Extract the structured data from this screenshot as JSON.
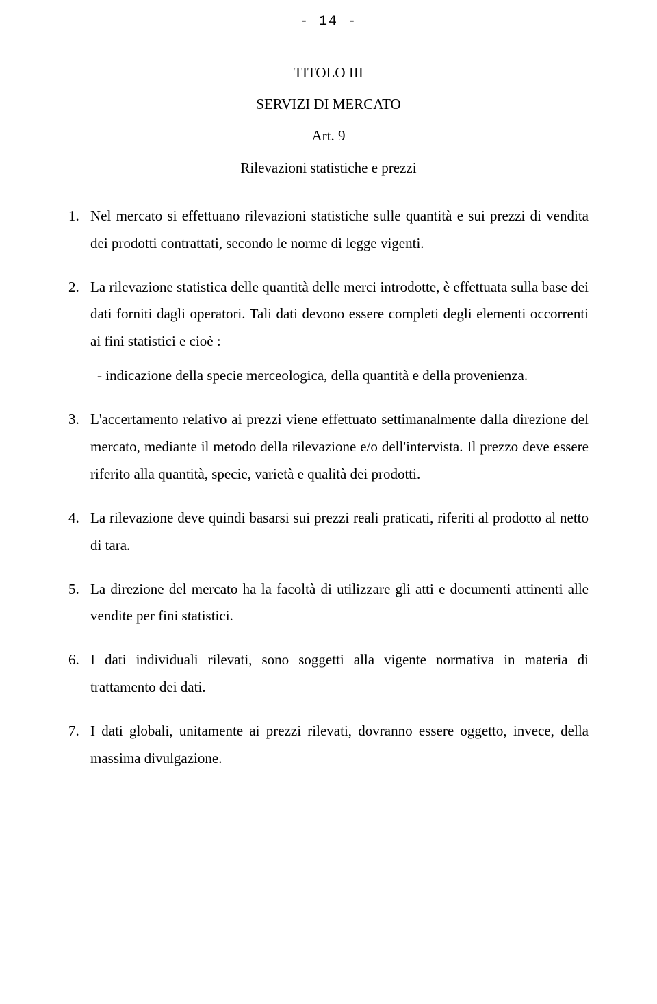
{
  "page_number_label": "- 14 -",
  "title": {
    "line1": "TITOLO III",
    "line2": "SERVIZI DI MERCATO",
    "line3": "Art. 9",
    "line4": "Rilevazioni statistiche e prezzi"
  },
  "items": [
    {
      "text": "Nel mercato si effettuano rilevazioni statistiche sulle quantità e sui prezzi di vendita dei prodotti contrattati, secondo le norme di legge vigenti."
    },
    {
      "text": "La rilevazione statistica delle quantità  delle merci  introdotte, è effettuata sulla base dei dati forniti dagli operatori. Tali dati devono essere completi degli elementi occorrenti ai fini statistici e cioè :",
      "sub": "-   indicazione della specie merceologica, della quantità e  della provenienza."
    },
    {
      "text": "L'accertamento relativo ai prezzi viene effettuato settimanalmente dalla direzione del mercato, mediante il metodo della rilevazione e/o dell'intervista. Il prezzo deve essere riferito alla quantità, specie, varietà e qualità dei prodotti."
    },
    {
      "text": "La rilevazione deve quindi basarsi sui prezzi reali praticati, riferiti al prodotto al netto di tara."
    },
    {
      "text": "La direzione del mercato ha la facoltà di utilizzare gli atti e documenti attinenti alle vendite per fini statistici."
    },
    {
      "text": "I dati individuali rilevati, sono soggetti alla vigente normativa in materia di trattamento dei dati."
    },
    {
      "text": "I dati globali, unitamente ai prezzi rilevati, dovranno essere oggetto, invece, della massima divulgazione."
    }
  ]
}
